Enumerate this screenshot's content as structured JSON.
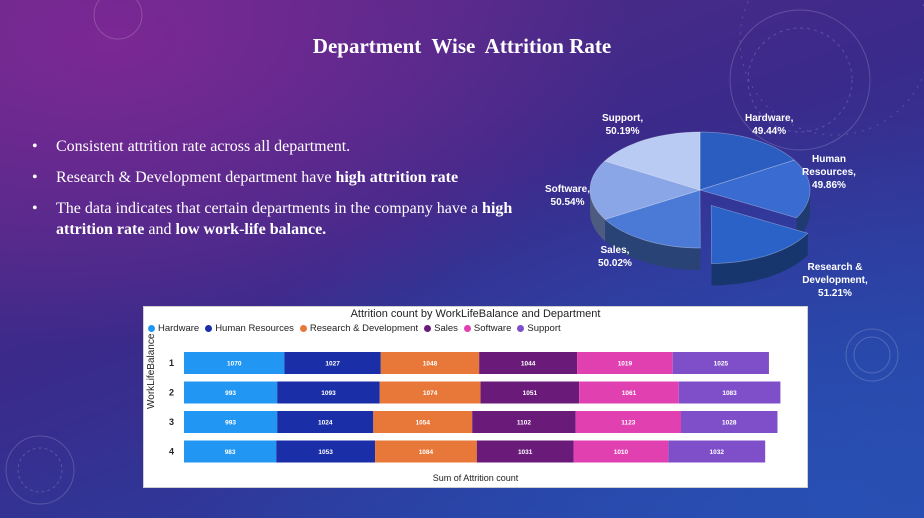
{
  "slide": {
    "title": "Department  Wise  Attrition Rate",
    "bullets": [
      {
        "parts": [
          {
            "text": "Consistent attrition rate across all department.",
            "bold": false
          }
        ]
      },
      {
        "parts": [
          {
            "text": "Research & Development department have ",
            "bold": false
          },
          {
            "text": "high attrition rate",
            "bold": true
          }
        ]
      },
      {
        "parts": [
          {
            "text": "The data indicates that certain departments in the company have a ",
            "bold": false
          },
          {
            "text": "high attrition rate",
            "bold": true
          },
          {
            "text": " and ",
            "bold": false
          },
          {
            "text": "low work-life balance.",
            "bold": true
          }
        ]
      }
    ],
    "bullet_char": "•"
  },
  "chart_data": [
    {
      "type": "pie",
      "categories": [
        "Hardware",
        "Human Resources",
        "Research & Development",
        "Sales",
        "Software",
        "Support"
      ],
      "values": [
        49.44,
        49.86,
        51.21,
        50.02,
        50.54,
        50.19
      ],
      "labels": [
        {
          "name": "Hardware,",
          "value": "49.44%"
        },
        {
          "name": "Human Resources,",
          "value": "49.86%"
        },
        {
          "name": "Research & Development,",
          "value": "51.21%"
        },
        {
          "name": "Sales,",
          "value": "50.02%"
        },
        {
          "name": "Software,",
          "value": "50.54%"
        },
        {
          "name": "Support,",
          "value": "50.19%"
        }
      ],
      "colors": [
        "#2b5cbf",
        "#3a6bd0",
        "#2b62c8",
        "#4b7ad6",
        "#8aa6e6",
        "#b9cbf2"
      ],
      "exploded": "Research & Development"
    },
    {
      "type": "bar",
      "orientation": "horizontal",
      "stacked": true,
      "title": "Attrition count by WorkLifeBalance and Department",
      "xlabel": "Sum of Attrition count",
      "ylabel": "WorkLifeBalance",
      "categories": [
        "1",
        "2",
        "3",
        "4"
      ],
      "series": [
        {
          "name": "Hardware",
          "color": "#2196f3",
          "values": [
            1070,
            993,
            993,
            983
          ]
        },
        {
          "name": "Human Resources",
          "color": "#1a2ea8",
          "values": [
            1027,
            1093,
            1024,
            1053
          ]
        },
        {
          "name": "Research & Development",
          "color": "#e8773a",
          "values": [
            1048,
            1074,
            1054,
            1084
          ]
        },
        {
          "name": "Sales",
          "color": "#6a1b7a",
          "values": [
            1044,
            1051,
            1102,
            1031
          ]
        },
        {
          "name": "Software",
          "color": "#e040b0",
          "values": [
            1019,
            1061,
            1123,
            1010
          ]
        },
        {
          "name": "Support",
          "color": "#7e4fc9",
          "values": [
            1025,
            1083,
            1028,
            1032
          ]
        }
      ],
      "legend": "top-left",
      "grid": false
    }
  ]
}
